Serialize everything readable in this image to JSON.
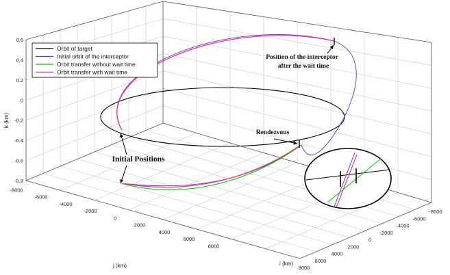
{
  "chart_data": {
    "type": "line",
    "xlabel": "i (km)",
    "ylabel": "j (km)",
    "zlabel": "k (km)",
    "z_ticks": [
      "0.6",
      "0.4",
      "0.2",
      "0",
      "-0.2",
      "-0.4",
      "-0.6",
      "-0.8"
    ],
    "y_ticks": [
      "-8000",
      "-6000",
      "-4000",
      "-2000",
      "0",
      "2000",
      "4000",
      "6000",
      "8000"
    ],
    "x_ticks": [
      "8000",
      "6000",
      "4000",
      "2000",
      "0",
      "-2000",
      "-4000",
      "-6000",
      "-8000"
    ],
    "zlim": [
      -0.8,
      0.6
    ],
    "ylim": [
      -8000,
      8000
    ],
    "xlim": [
      -8000,
      8000
    ],
    "grid": true,
    "legend_position": "top-left",
    "series": [
      {
        "name": "Orbit of target",
        "color": "#000000"
      },
      {
        "name": "Initial orbit of the interceptor",
        "color": "#3b3bff"
      },
      {
        "name": "Orbit transfer without wait time",
        "color": "#00cc00"
      },
      {
        "name": "Orbit transfer with wait time",
        "color": "#ff2a7a"
      }
    ],
    "annotations": {
      "wait_position": "Position of the interceptor\nafter the wait time",
      "rendezvous": "Rendezvous",
      "initial_positions": "Initial Positions"
    }
  }
}
